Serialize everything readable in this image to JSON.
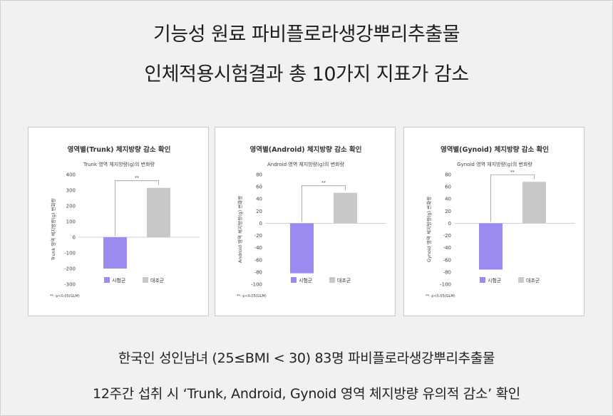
{
  "headline": {
    "line1": "기능성 원료 파비플로라생강뿌리추출물",
    "line2": "인체적용시험결과 총 10가지 지표가 감소"
  },
  "footer": {
    "line1": "한국인 성인남녀 (25≤BMI < 30) 83명 파비플로라생강뿌리추출물",
    "line2": "12주간 섭취 시 ‘Trunk, Android, Gynoid 영역 체지방량 유의적 감소’ 확인"
  },
  "colors": {
    "treatment": "#9b8af0",
    "control": "#c8c8c8"
  },
  "chart_data": [
    {
      "type": "bar",
      "title": "영역별(Trunk) 체지방량 감소 확인",
      "subtitle": "Trunk 영역 체지방량(g)의 변화량",
      "ylabel": "Trunk 영역 체지방량(g) 변화량",
      "categories": [
        "시험군",
        "대조군"
      ],
      "values": [
        -200,
        315
      ],
      "ylim": [
        -300,
        400
      ],
      "yticks": [
        400,
        300,
        200,
        100,
        0,
        -100,
        -200,
        -300
      ],
      "significance": "**",
      "legend": [
        "시험군",
        "대조군"
      ],
      "note": "**: p<0.05(GLM)"
    },
    {
      "type": "bar",
      "title": "영역별(Android) 체지방량 감소 확인",
      "subtitle": "Android 영역 체지방량(g)의 변화량",
      "ylabel": "Android 영역 체지방량(g) 변화량",
      "categories": [
        "시험군",
        "대조군"
      ],
      "values": [
        -82,
        50
      ],
      "ylim": [
        -100,
        80
      ],
      "yticks": [
        80,
        60,
        40,
        20,
        0,
        -20,
        -40,
        -60,
        -80,
        -100
      ],
      "significance": "**",
      "legend": [
        "시험군",
        "대조군"
      ],
      "note": "**: p<0.05(GLM)"
    },
    {
      "type": "bar",
      "title": "영역별(Gynoid) 체지방량 감소 확인",
      "subtitle": "Gynoid 영역 체지방량(g)의 변화량",
      "ylabel": "Gynoid 영역 체지방량(g) 변화량",
      "categories": [
        "시험군",
        "대조군"
      ],
      "values": [
        -76,
        68
      ],
      "ylim": [
        -100,
        80
      ],
      "yticks": [
        80,
        60,
        40,
        20,
        0,
        -20,
        -40,
        -60,
        -80,
        -100
      ],
      "significance": "**",
      "legend": [
        "시험군",
        "대조군"
      ],
      "note": "**: p<0.05(GLM)"
    }
  ]
}
